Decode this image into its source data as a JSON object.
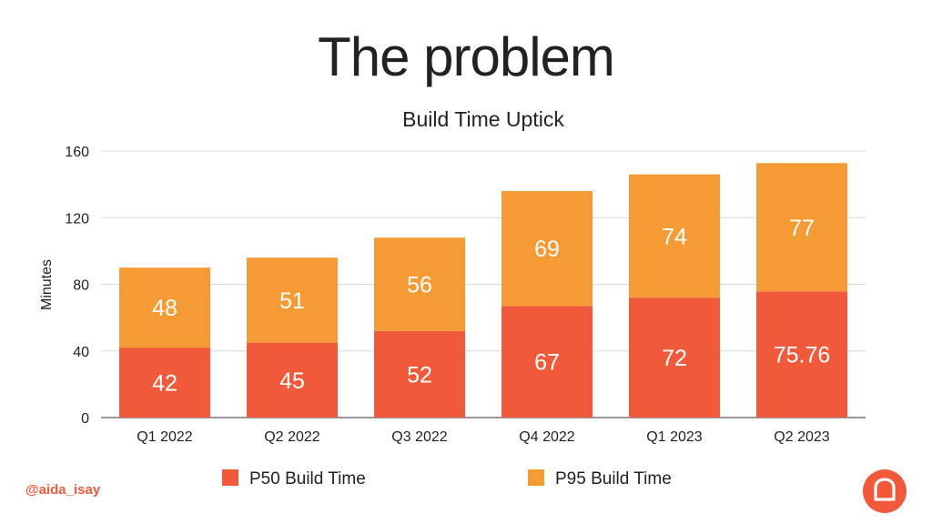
{
  "slide": {
    "title": "The problem",
    "handle": "@aida_isay"
  },
  "colors": {
    "p50": "#f05a3a",
    "p95": "#f59b35",
    "grid": "#d9d9d9",
    "text": "#222222",
    "logo": "#f05a3a"
  },
  "logo": {
    "icon": "toast-logo-icon"
  },
  "chart_data": {
    "type": "bar",
    "stacked": true,
    "title": "Build Time Uptick",
    "xlabel": "",
    "ylabel": "Minutes",
    "ylim": [
      0,
      160
    ],
    "yticks": [
      "0",
      "40",
      "80",
      "120",
      "160"
    ],
    "grid": true,
    "legend_position": "bottom",
    "categories": [
      "Q1 2022",
      "Q2 2022",
      "Q3 2022",
      "Q4 2022",
      "Q1 2023",
      "Q2 2023"
    ],
    "series": [
      {
        "name": "P50 Build Time",
        "values": [
          42,
          45,
          52,
          67,
          72,
          75.76
        ],
        "labels": [
          "42",
          "45",
          "52",
          "67",
          "72",
          "75.76"
        ]
      },
      {
        "name": "P95 Build Time",
        "values": [
          48,
          51,
          56,
          69,
          74,
          77
        ],
        "labels": [
          "48",
          "51",
          "56",
          "69",
          "74",
          "77"
        ]
      }
    ]
  }
}
